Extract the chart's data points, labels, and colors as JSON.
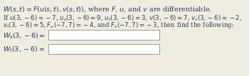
{
  "line1": "$W(s, t) = F(u(s, t), v(s, t))$, where $F$, $u$, and $v$ are differentiable.",
  "line2": "If $u(3, -6) = -7$, $u_s(3, -6) = 9$, $u_t(3, -6) = 3$, $v(3, -6) = 7$, $v_s(3, -6) = -2$,",
  "line3": "$v_t(3, -6) = 5$, $F_u(-7, 7) = -4$, and $F_v(-7, 7) = -3$, then find the following:",
  "ws_label": "$W_s(3, -6) =$",
  "wt_label": "$W_t(3, -6) =$",
  "bg_color": "#f0ece0",
  "text_color": "#2a3a5c",
  "box_color": "#ffffff",
  "box_edge_color": "#999999",
  "font_size_line1": 6.8,
  "font_size_body": 6.2,
  "font_size_label": 6.8
}
